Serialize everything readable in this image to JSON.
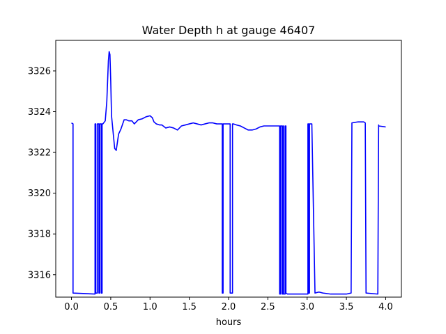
{
  "chart_data": {
    "type": "line",
    "title": "Water Depth h at gauge 46407",
    "xlabel": "hours",
    "ylabel": "",
    "xlim": [
      -0.2,
      4.2
    ],
    "ylim": [
      3314.9,
      3327.5
    ],
    "xticks": [
      0.0,
      0.5,
      1.0,
      1.5,
      2.0,
      2.5,
      3.0,
      3.5,
      4.0
    ],
    "xtick_labels": [
      "0.0",
      "0.5",
      "1.0",
      "1.5",
      "2.0",
      "2.5",
      "3.0",
      "3.5",
      "4.0"
    ],
    "yticks": [
      3316,
      3318,
      3320,
      3322,
      3324,
      3326
    ],
    "ytick_labels": [
      "3316",
      "3318",
      "3320",
      "3322",
      "3324",
      "3326"
    ],
    "grid": false,
    "color": "#0000ff",
    "series": [
      {
        "name": "",
        "x": [
          0.0,
          0.02,
          0.02,
          0.3,
          0.3,
          0.31,
          0.31,
          0.33,
          0.33,
          0.35,
          0.35,
          0.36,
          0.36,
          0.38,
          0.38,
          0.39,
          0.39,
          0.4,
          0.43,
          0.45,
          0.47,
          0.48,
          0.49,
          0.5,
          0.51,
          0.53,
          0.55,
          0.57,
          0.6,
          0.63,
          0.67,
          0.7,
          0.73,
          0.77,
          0.8,
          0.85,
          0.9,
          0.95,
          1.0,
          1.03,
          1.05,
          1.08,
          1.12,
          1.15,
          1.2,
          1.25,
          1.3,
          1.35,
          1.4,
          1.45,
          1.5,
          1.55,
          1.6,
          1.65,
          1.7,
          1.75,
          1.8,
          1.85,
          1.91,
          1.92,
          1.92,
          1.93,
          1.93,
          1.95,
          2.01,
          2.02,
          2.02,
          2.05,
          2.05,
          2.06,
          2.1,
          2.15,
          2.2,
          2.25,
          2.3,
          2.35,
          2.4,
          2.45,
          2.5,
          2.55,
          2.6,
          2.64,
          2.65,
          2.65,
          2.66,
          2.66,
          2.68,
          2.68,
          2.69,
          2.69,
          2.7,
          2.7,
          2.72,
          2.72,
          2.73,
          2.73,
          2.75,
          2.9,
          3.01,
          3.01,
          3.02,
          3.02,
          3.03,
          3.03,
          3.06,
          3.1,
          3.15,
          3.2,
          3.3,
          3.4,
          3.5,
          3.56,
          3.57,
          3.57,
          3.65,
          3.72,
          3.74,
          3.75,
          3.75,
          3.9,
          3.91,
          3.91,
          4.0
        ],
        "y": [
          3323.45,
          3323.4,
          3315.1,
          3315.05,
          3323.4,
          3323.4,
          3315.1,
          3315.1,
          3323.4,
          3323.4,
          3315.1,
          3315.1,
          3323.4,
          3323.4,
          3315.1,
          3315.1,
          3323.4,
          3323.4,
          3323.55,
          3324.5,
          3326.5,
          3326.95,
          3326.8,
          3325.5,
          3323.8,
          3323.0,
          3322.2,
          3322.1,
          3322.9,
          3323.15,
          3323.6,
          3323.6,
          3323.55,
          3323.55,
          3323.4,
          3323.6,
          3323.65,
          3323.75,
          3323.8,
          3323.7,
          3323.5,
          3323.4,
          3323.35,
          3323.35,
          3323.2,
          3323.25,
          3323.2,
          3323.1,
          3323.3,
          3323.35,
          3323.4,
          3323.45,
          3323.4,
          3323.35,
          3323.4,
          3323.45,
          3323.45,
          3323.4,
          3323.4,
          3323.4,
          3315.1,
          3315.1,
          3323.4,
          3323.4,
          3323.4,
          3323.4,
          3315.1,
          3315.1,
          3323.4,
          3323.4,
          3323.35,
          3323.3,
          3323.2,
          3323.1,
          3323.1,
          3323.15,
          3323.25,
          3323.3,
          3323.3,
          3323.3,
          3323.3,
          3323.3,
          3323.3,
          3315.05,
          3315.05,
          3323.3,
          3323.3,
          3315.05,
          3315.05,
          3323.3,
          3323.3,
          3315.05,
          3315.05,
          3323.3,
          3323.3,
          3315.1,
          3315.05,
          3315.05,
          3315.05,
          3323.4,
          3323.4,
          3315.1,
          3315.1,
          3323.4,
          3323.4,
          3315.1,
          3315.15,
          3315.1,
          3315.05,
          3315.05,
          3315.05,
          3315.1,
          3323.4,
          3323.45,
          3323.5,
          3323.5,
          3323.45,
          3315.15,
          3315.1,
          3315.05,
          3323.35,
          3323.3,
          3323.25
        ]
      }
    ]
  }
}
